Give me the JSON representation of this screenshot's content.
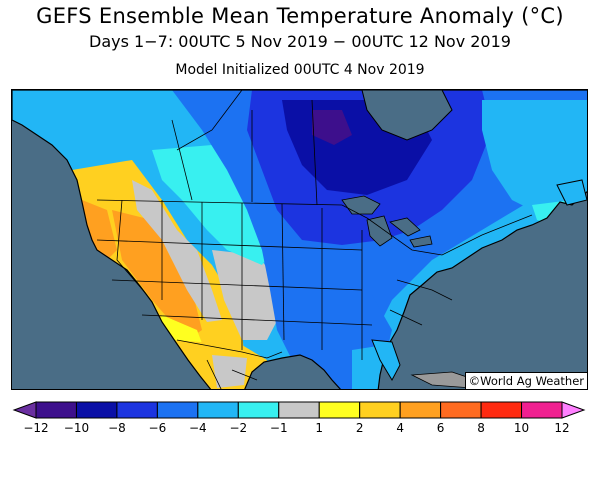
{
  "header": {
    "title": "GEFS Ensemble Mean Temperature Anomaly (°C)",
    "subtitle": "Days 1−7: 00UTC 5 Nov 2019 − 00UTC 12 Nov 2019",
    "init": "Model Initialized 00UTC 4 Nov 2019"
  },
  "credit": "©World Ag Weather",
  "colors": {
    "ocean": "#4a6d86",
    "land_outside": "#9a9a9a",
    "lake": "#4a6d86",
    "frame": "#000000"
  },
  "legend": {
    "unit": "°C",
    "ticks": [
      "−12",
      "−10",
      "−8",
      "−6",
      "−4",
      "−2",
      "−1",
      "1",
      "2",
      "4",
      "6",
      "8",
      "10",
      "12"
    ],
    "bins": [
      {
        "color": "#6a2fa0"
      },
      {
        "color": "#3d0f8c"
      },
      {
        "color": "#0a0fa6"
      },
      {
        "color": "#1c34e0"
      },
      {
        "color": "#1c72f2"
      },
      {
        "color": "#22b6f5"
      },
      {
        "color": "#38f0f0"
      },
      {
        "color": "#c8c8c8"
      },
      {
        "color": "#ffff20"
      },
      {
        "color": "#ffd020"
      },
      {
        "color": "#ffa020"
      },
      {
        "color": "#ff6b20"
      },
      {
        "color": "#ff2a10"
      },
      {
        "color": "#f02090"
      },
      {
        "color": "#ff80ff"
      }
    ]
  }
}
